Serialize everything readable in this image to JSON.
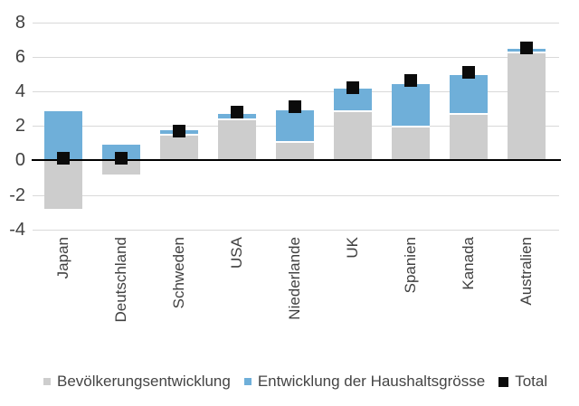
{
  "chart_data": {
    "type": "bar",
    "stacked": true,
    "title": "",
    "xlabel": "",
    "ylabel": "",
    "categories": [
      "Japan",
      "Deutschland",
      "Schweden",
      "USA",
      "Niederlande",
      "UK",
      "Spanien",
      "Kanada",
      "Australien"
    ],
    "series": [
      {
        "name": "Bevölkerungsentwicklung",
        "role": "bar",
        "color": "#cdcdcd",
        "values": [
          -2.8,
          -0.85,
          1.45,
          2.3,
          1.0,
          2.8,
          1.9,
          2.65,
          6.2
        ]
      },
      {
        "name": "Entwicklung der Haushaltsgrösse",
        "role": "bar",
        "color": "#6fafd9",
        "values": [
          2.85,
          0.9,
          0.3,
          0.4,
          1.9,
          1.35,
          2.5,
          2.3,
          0.25
        ]
      },
      {
        "name": "Total",
        "role": "marker",
        "color": "#0b0b0b",
        "values": [
          0.1,
          0.1,
          1.7,
          2.8,
          3.1,
          4.2,
          4.6,
          5.1,
          6.5
        ]
      }
    ],
    "ylim": [
      -4,
      8
    ],
    "yticks": [
      8,
      6,
      4,
      2,
      0,
      -2,
      -4
    ],
    "grid": true,
    "legend_position": "bottom",
    "colors": {
      "gridline": "#d9d9d9",
      "zero_axis": "#000000",
      "tick_text": "#404040",
      "label_text": "#404040",
      "legend_text": "#444444",
      "background": "#ffffff"
    }
  }
}
